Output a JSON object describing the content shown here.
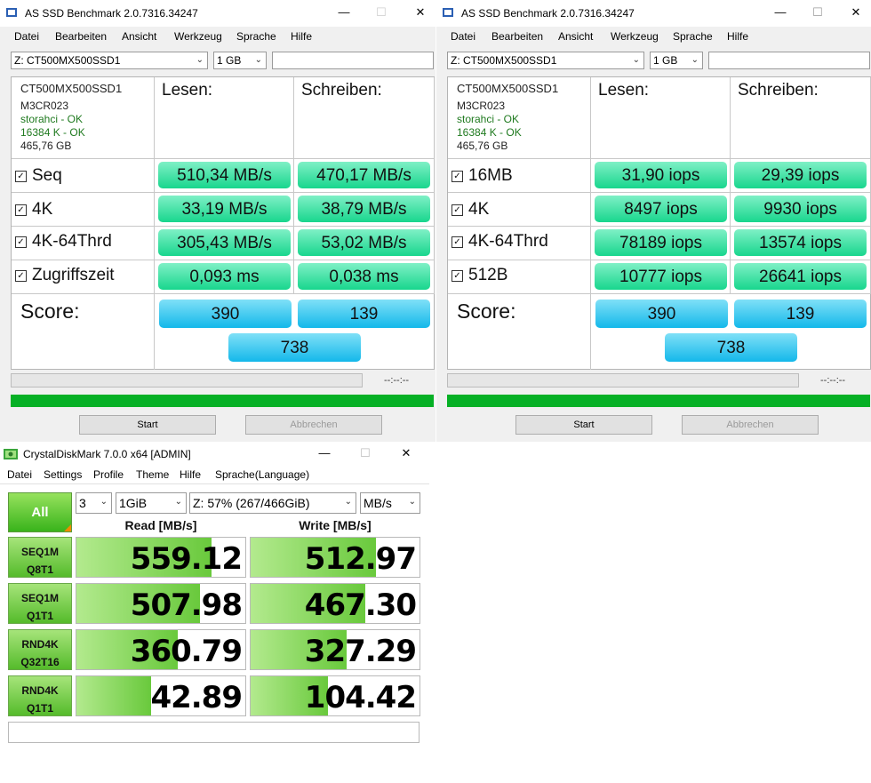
{
  "as_ssd_left": {
    "title": "AS SSD Benchmark 2.0.7316.34247",
    "menu": [
      "Datei",
      "Bearbeiten",
      "Ansicht",
      "Werkzeug",
      "Sprache",
      "Hilfe"
    ],
    "drive_select": "Z: CT500MX500SSD1",
    "size_select": "1 GB",
    "info": [
      "CT500MX500SSD1",
      "M3CR023",
      "storahci - OK",
      "16384 K - OK",
      "465,76 GB"
    ],
    "col_read": "Lesen:",
    "col_write": "Schreiben:",
    "rows": [
      {
        "label": "Seq",
        "read": "510,34 MB/s",
        "write": "470,17 MB/s"
      },
      {
        "label": "4K",
        "read": "33,19 MB/s",
        "write": "38,79 MB/s"
      },
      {
        "label": "4K-64Thrd",
        "read": "305,43 MB/s",
        "write": "53,02 MB/s"
      },
      {
        "label": "Zugriffszeit",
        "read": "0,093 ms",
        "write": "0,038 ms"
      }
    ],
    "score_label": "Score:",
    "score_read": "390",
    "score_write": "139",
    "score_total": "738",
    "timer": "--:--:--",
    "start": "Start",
    "abort": "Abbrechen"
  },
  "as_ssd_right": {
    "title": "AS SSD Benchmark 2.0.7316.34247",
    "menu": [
      "Datei",
      "Bearbeiten",
      "Ansicht",
      "Werkzeug",
      "Sprache",
      "Hilfe"
    ],
    "drive_select": "Z: CT500MX500SSD1",
    "size_select": "1 GB",
    "info": [
      "CT500MX500SSD1",
      "M3CR023",
      "storahci - OK",
      "16384 K - OK",
      "465,76 GB"
    ],
    "col_read": "Lesen:",
    "col_write": "Schreiben:",
    "rows": [
      {
        "label": "16MB",
        "read": "31,90 iops",
        "write": "29,39 iops"
      },
      {
        "label": "4K",
        "read": "8497 iops",
        "write": "9930 iops"
      },
      {
        "label": "4K-64Thrd",
        "read": "78189 iops",
        "write": "13574 iops"
      },
      {
        "label": "512B",
        "read": "10777 iops",
        "write": "26641 iops"
      }
    ],
    "score_label": "Score:",
    "score_read": "390",
    "score_write": "139",
    "score_total": "738",
    "timer": "--:--:--",
    "start": "Start",
    "abort": "Abbrechen"
  },
  "cdm": {
    "title": "CrystalDiskMark 7.0.0 x64 [ADMIN]",
    "menu": [
      "Datei",
      "Settings",
      "Profile",
      "Theme",
      "Hilfe",
      "Sprache(Language)"
    ],
    "all_label": "All",
    "count_select": "3",
    "size_select": "1GiB",
    "drive_select": "Z: 57% (267/466GiB)",
    "unit_select": "MB/s",
    "read_header": "Read [MB/s]",
    "write_header": "Write [MB/s]",
    "tests": [
      {
        "line1": "SEQ1M",
        "line2": "Q8T1",
        "read": "559.12",
        "write": "512.97",
        "read_fill": 0.8,
        "write_fill": 0.74
      },
      {
        "line1": "SEQ1M",
        "line2": "Q1T1",
        "read": "507.98",
        "write": "467.30",
        "read_fill": 0.73,
        "write_fill": 0.68
      },
      {
        "line1": "RND4K",
        "line2": "Q32T16",
        "read": "360.79",
        "write": "327.29",
        "read_fill": 0.6,
        "write_fill": 0.57
      },
      {
        "line1": "RND4K",
        "line2": "Q1T1",
        "read": "42.89",
        "write": "104.42",
        "read_fill": 0.44,
        "write_fill": 0.46
      }
    ]
  },
  "window_controls": {
    "minimize": "—",
    "maximize": "☐",
    "close": "✕"
  }
}
